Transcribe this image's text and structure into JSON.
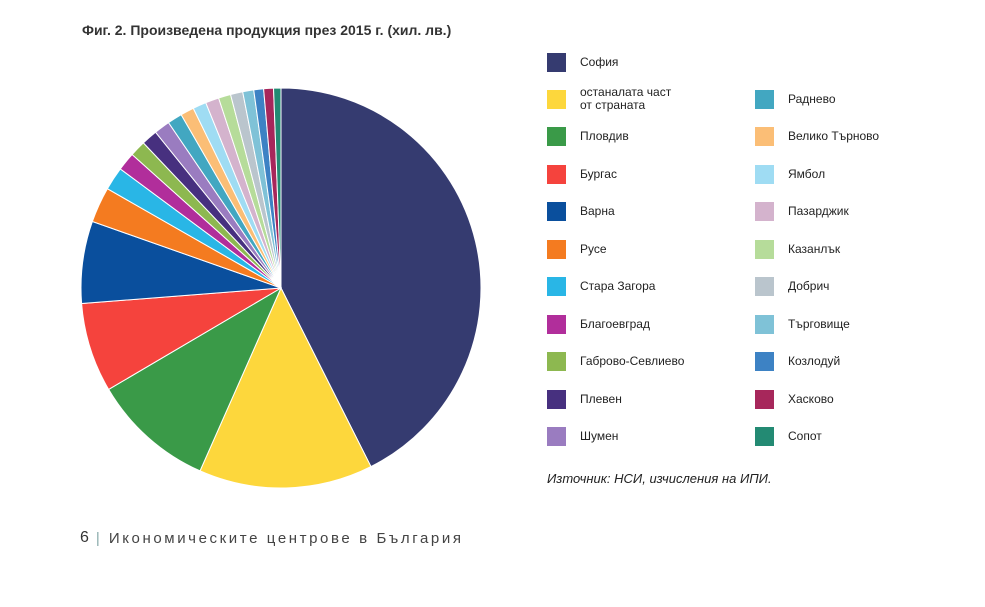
{
  "figure": {
    "title": "Фиг. 2. Произведена продукция през 2015 г. (хил. лв.)",
    "source": "Източник: НСИ, изчисления на ИПИ."
  },
  "footer": {
    "page_number": "6",
    "separator": "|",
    "text": "Икономическите центрове в България"
  },
  "chart_data": {
    "type": "pie",
    "title": "Фиг. 2. Произведена продукция през 2015 г. (хил. лв.)",
    "unit": "хил. лв.",
    "legend_placement": "right",
    "start": "12 o'clock, clockwise",
    "slices": [
      {
        "label": "София",
        "value": 43.0,
        "color": "#353b70"
      },
      {
        "label": "останалата част\nот страната",
        "value": 14.2,
        "color": "#fdd73c"
      },
      {
        "label": "Пловдив",
        "value": 10.0,
        "color": "#3a9a48"
      },
      {
        "label": "Бургас",
        "value": 7.3,
        "color": "#f5433d"
      },
      {
        "label": "Варна",
        "value": 6.7,
        "color": "#0a4f9d"
      },
      {
        "label": "Русе",
        "value": 2.9,
        "color": "#f47b20"
      },
      {
        "label": "Стара Загора",
        "value": 1.9,
        "color": "#29b6e6"
      },
      {
        "label": "Благоевград",
        "value": 1.5,
        "color": "#b12e9b"
      },
      {
        "label": "Габрово-Севлиево",
        "value": 1.3,
        "color": "#8db850"
      },
      {
        "label": "Плевен",
        "value": 1.3,
        "color": "#47307f"
      },
      {
        "label": "Шумен",
        "value": 1.3,
        "color": "#9a7cc0"
      },
      {
        "label": "Раднево",
        "value": 1.2,
        "color": "#42a7c1"
      },
      {
        "label": "Велико Търново",
        "value": 1.1,
        "color": "#fbbe76"
      },
      {
        "label": "Ямбол",
        "value": 1.1,
        "color": "#9fdcf3"
      },
      {
        "label": "Пазарджик",
        "value": 1.1,
        "color": "#d4b3cd"
      },
      {
        "label": "Казанлък",
        "value": 1.0,
        "color": "#b6dc9a"
      },
      {
        "label": "Добрич",
        "value": 1.0,
        "color": "#bac5cd"
      },
      {
        "label": "Търговище",
        "value": 0.9,
        "color": "#7fc2d7"
      },
      {
        "label": "Козлодуй",
        "value": 0.8,
        "color": "#3d82c4"
      },
      {
        "label": "Хасково",
        "value": 0.8,
        "color": "#a7275b"
      },
      {
        "label": "Сопот",
        "value": 0.6,
        "color": "#238a73"
      }
    ]
  }
}
